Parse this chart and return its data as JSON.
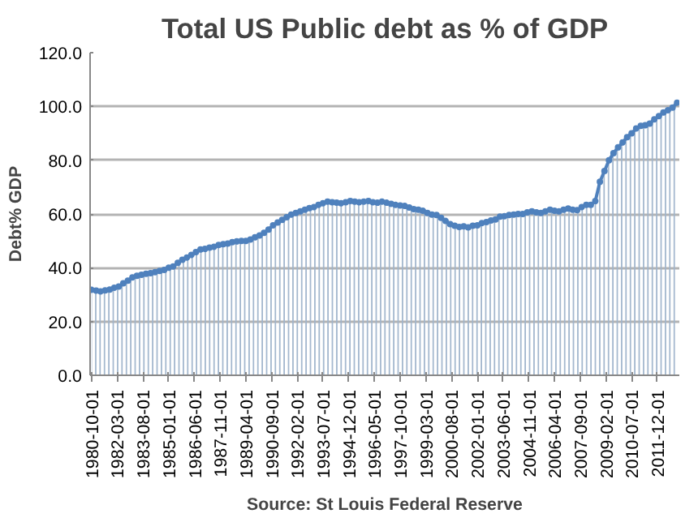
{
  "chart_data": {
    "type": "area",
    "title": "Total US Public debt as % of GDP",
    "ylabel": "Debt% GDP",
    "annotations": [
      "Source: St Louis Federal Reserve"
    ],
    "x": [
      "1980-10-01",
      "1981-01-01",
      "1981-04-01",
      "1981-07-01",
      "1981-10-01",
      "1982-01-01",
      "1982-04-01",
      "1982-07-01",
      "1982-10-01",
      "1983-01-01",
      "1983-04-01",
      "1983-07-01",
      "1983-10-01",
      "1984-01-01",
      "1984-04-01",
      "1984-07-01",
      "1984-10-01",
      "1985-01-01",
      "1985-04-01",
      "1985-07-01",
      "1985-10-01",
      "1986-01-01",
      "1986-04-01",
      "1986-07-01",
      "1986-10-01",
      "1987-01-01",
      "1987-04-01",
      "1987-07-01",
      "1987-10-01",
      "1988-01-01",
      "1988-04-01",
      "1988-07-01",
      "1988-10-01",
      "1989-01-01",
      "1989-04-01",
      "1989-07-01",
      "1989-10-01",
      "1990-01-01",
      "1990-04-01",
      "1990-07-01",
      "1990-10-01",
      "1991-01-01",
      "1991-04-01",
      "1991-07-01",
      "1991-10-01",
      "1992-01-01",
      "1992-04-01",
      "1992-07-01",
      "1992-10-01",
      "1993-01-01",
      "1993-04-01",
      "1993-07-01",
      "1993-10-01",
      "1994-01-01",
      "1994-04-01",
      "1994-07-01",
      "1994-10-01",
      "1995-01-01",
      "1995-04-01",
      "1995-07-01",
      "1995-10-01",
      "1996-01-01",
      "1996-04-01",
      "1996-07-01",
      "1996-10-01",
      "1997-01-01",
      "1997-04-01",
      "1997-07-01",
      "1997-10-01",
      "1998-01-01",
      "1998-04-01",
      "1998-07-01",
      "1998-10-01",
      "1999-01-01",
      "1999-04-01",
      "1999-07-01",
      "1999-10-01",
      "2000-01-01",
      "2000-04-01",
      "2000-07-01",
      "2000-10-01",
      "2001-01-01",
      "2001-04-01",
      "2001-07-01",
      "2001-10-01",
      "2002-01-01",
      "2002-04-01",
      "2002-07-01",
      "2002-10-01",
      "2003-01-01",
      "2003-04-01",
      "2003-07-01",
      "2003-10-01",
      "2004-01-01",
      "2004-04-01",
      "2004-07-01",
      "2004-10-01",
      "2005-01-01",
      "2005-04-01",
      "2005-07-01",
      "2005-10-01",
      "2006-01-01",
      "2006-04-01",
      "2006-07-01",
      "2006-10-01",
      "2007-01-01",
      "2007-04-01",
      "2007-07-01",
      "2007-10-01",
      "2008-01-01",
      "2008-04-01",
      "2008-07-01",
      "2008-10-01",
      "2009-01-01",
      "2009-04-01",
      "2009-07-01",
      "2009-10-01",
      "2010-01-01",
      "2010-04-01",
      "2010-07-01",
      "2010-10-01",
      "2011-01-01",
      "2011-04-01",
      "2011-07-01",
      "2011-10-01",
      "2012-01-01",
      "2012-04-01",
      "2012-07-01",
      "2012-10-01",
      "2013-01-01"
    ],
    "series": [
      {
        "color": "#4f81bd",
        "values": [
          31.8,
          31.5,
          31.2,
          31.6,
          31.9,
          32.6,
          33.0,
          34.2,
          35.2,
          36.4,
          37.0,
          37.4,
          37.8,
          38.0,
          38.4,
          38.8,
          39.2,
          40.0,
          40.5,
          41.8,
          43.0,
          43.8,
          44.8,
          45.8,
          46.8,
          47.0,
          47.5,
          47.8,
          48.5,
          48.8,
          49.0,
          49.5,
          49.8,
          50.0,
          50.0,
          50.5,
          51.3,
          52.0,
          53.0,
          54.2,
          55.8,
          56.8,
          57.8,
          58.8,
          59.8,
          60.4,
          61.0,
          61.6,
          62.2,
          62.6,
          63.4,
          64.0,
          64.6,
          64.4,
          64.2,
          64.0,
          64.4,
          64.8,
          64.6,
          64.4,
          64.6,
          64.8,
          64.4,
          64.2,
          64.6,
          64.2,
          63.8,
          63.4,
          63.2,
          63.0,
          62.4,
          61.8,
          61.6,
          61.2,
          60.4,
          59.8,
          59.6,
          58.6,
          57.4,
          56.2,
          55.6,
          55.2,
          55.4,
          55.0,
          55.6,
          55.8,
          56.6,
          57.0,
          57.6,
          58.0,
          59.0,
          59.2,
          59.6,
          59.8,
          60.0,
          60.0,
          60.6,
          61.0,
          60.6,
          60.4,
          61.0,
          61.6,
          61.2,
          61.0,
          61.6,
          62.0,
          61.6,
          61.4,
          62.6,
          63.4,
          63.4,
          64.8,
          72.0,
          76.0,
          80.0,
          82.6,
          84.8,
          86.6,
          88.6,
          90.0,
          91.8,
          92.8,
          93.0,
          93.6,
          95.2,
          96.4,
          97.8,
          98.6,
          99.6,
          101.4
        ]
      }
    ],
    "ylim": [
      0,
      120
    ],
    "yticks": [
      {
        "value": 0,
        "label": "0.0"
      },
      {
        "value": 20,
        "label": "20.0"
      },
      {
        "value": 40,
        "label": "40.0"
      },
      {
        "value": 60,
        "label": "60.0"
      },
      {
        "value": 80,
        "label": "80.0"
      },
      {
        "value": 100,
        "label": "100.0"
      },
      {
        "value": 120,
        "label": "120.0"
      }
    ],
    "xlim": [
      "1980-09-01",
      "2013-02-15"
    ],
    "xticks": [
      "1980-10-01",
      "1982-03-01",
      "1983-08-01",
      "1985-01-01",
      "1986-06-01",
      "1987-11-01",
      "1989-04-01",
      "1990-09-01",
      "1992-02-01",
      "1993-07-01",
      "1994-12-01",
      "1996-05-01",
      "1997-10-01",
      "1999-03-01",
      "2000-08-01",
      "2002-01-01",
      "2003-06-01",
      "2004-11-01",
      "2006-04-01",
      "2007-09-01",
      "2009-02-01",
      "2010-07-01",
      "2011-12-01"
    ],
    "grid": "y",
    "marker": "circle"
  }
}
